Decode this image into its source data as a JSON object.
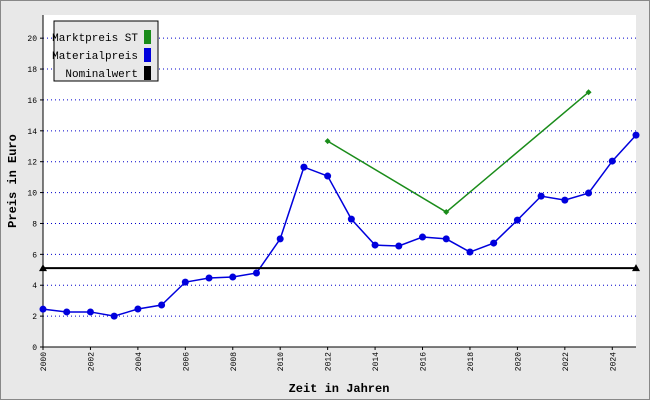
{
  "chart_data": {
    "type": "line",
    "x_label": "Zeit in Jahren",
    "y_label": "Preis in Euro",
    "xlim": [
      2000,
      2025
    ],
    "xticks": [
      2000,
      2002,
      2004,
      2006,
      2008,
      2010,
      2012,
      2014,
      2016,
      2018,
      2020,
      2022,
      2024
    ],
    "ylim": [
      0,
      21.5
    ],
    "yticks": [
      0,
      2,
      4,
      6,
      8,
      10,
      12,
      14,
      16,
      18,
      20
    ],
    "grid": true,
    "legend": "top-left",
    "series": [
      {
        "name": "Marktpreis ST",
        "color": "#1a8c1a",
        "marker": "diamond",
        "x": [
          2012,
          2017,
          2023
        ],
        "values": [
          13.33,
          8.74,
          16.5
        ]
      },
      {
        "name": "Materialpreis",
        "color": "#0000dd",
        "marker": "circle",
        "x": [
          2000,
          2001,
          2002,
          2003,
          2004,
          2005,
          2006,
          2007,
          2008,
          2009,
          2010,
          2011,
          2012,
          2013,
          2014,
          2015,
          2016,
          2017,
          2018,
          2019,
          2020,
          2021,
          2022,
          2023,
          2024,
          2025
        ],
        "values": [
          2.45,
          2.27,
          2.27,
          2.0,
          2.46,
          2.72,
          4.2,
          4.47,
          4.53,
          4.79,
          7.0,
          11.65,
          11.07,
          8.28,
          6.6,
          6.54,
          7.12,
          7.0,
          6.15,
          6.73,
          8.22,
          9.77,
          9.51,
          9.97,
          12.04,
          13.72
        ]
      },
      {
        "name": "Nominalwert",
        "color": "#000000",
        "marker": "triangle",
        "x": [
          2000,
          2025
        ],
        "values": [
          5.11,
          5.11
        ]
      }
    ]
  }
}
